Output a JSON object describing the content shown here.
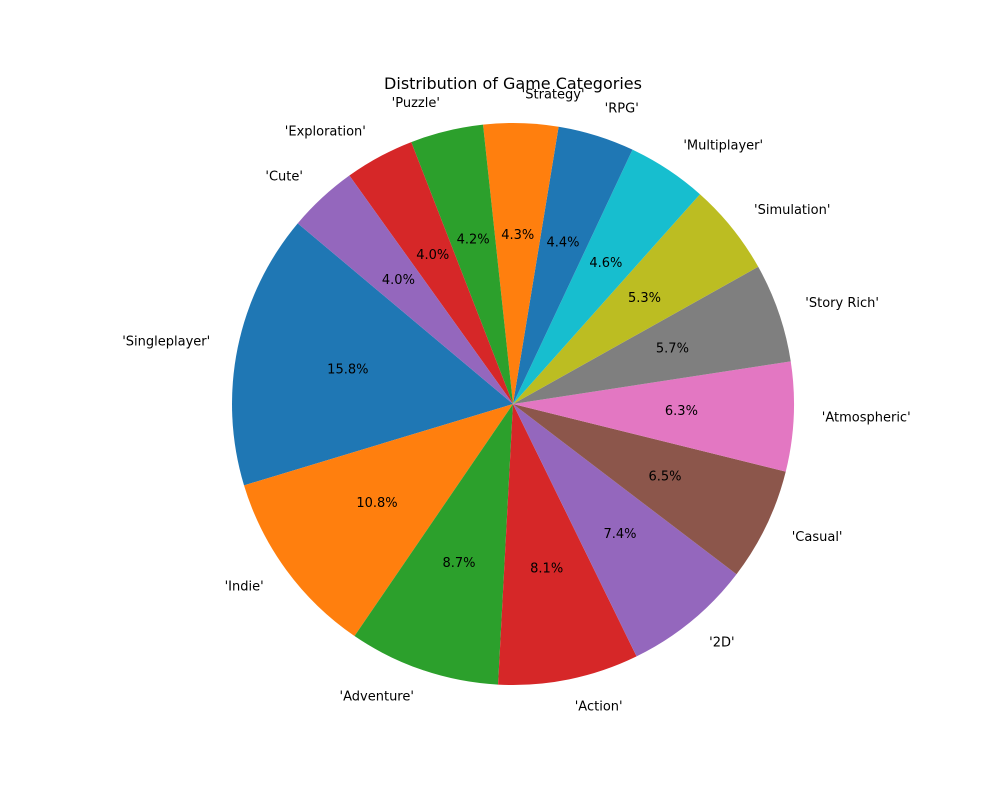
{
  "chart_data": {
    "type": "pie",
    "title": "Distribution of Game Categories",
    "start_angle_deg": 140,
    "direction": "counterclockwise",
    "slices": [
      {
        "label": "'Singleplayer'",
        "value": 15.8,
        "pct_text": "15.8%",
        "color": "#1f77b4"
      },
      {
        "label": "'Indie'",
        "value": 10.8,
        "pct_text": "10.8%",
        "color": "#ff7f0e"
      },
      {
        "label": "'Adventure'",
        "value": 8.7,
        "pct_text": "8.7%",
        "color": "#2ca02c"
      },
      {
        "label": "'Action'",
        "value": 8.1,
        "pct_text": "8.1%",
        "color": "#d62728"
      },
      {
        "label": "'2D'",
        "value": 7.4,
        "pct_text": "7.4%",
        "color": "#9467bd"
      },
      {
        "label": "'Casual'",
        "value": 6.5,
        "pct_text": "6.5%",
        "color": "#8c564b"
      },
      {
        "label": "'Atmospheric'",
        "value": 6.3,
        "pct_text": "6.3%",
        "color": "#e377c2"
      },
      {
        "label": "'Story Rich'",
        "value": 5.7,
        "pct_text": "5.7%",
        "color": "#7f7f7f"
      },
      {
        "label": "'Simulation'",
        "value": 5.3,
        "pct_text": "5.3%",
        "color": "#bcbd22"
      },
      {
        "label": "'Multiplayer'",
        "value": 4.6,
        "pct_text": "4.6%",
        "color": "#17becf"
      },
      {
        "label": "'RPG'",
        "value": 4.4,
        "pct_text": "4.4%",
        "color": "#1f77b4"
      },
      {
        "label": "'Strategy'",
        "value": 4.3,
        "pct_text": "4.3%",
        "color": "#ff7f0e"
      },
      {
        "label": "'Puzzle'",
        "value": 4.2,
        "pct_text": "4.2%",
        "color": "#2ca02c"
      },
      {
        "label": "'Exploration'",
        "value": 4.0,
        "pct_text": "4.0%",
        "color": "#d62728"
      },
      {
        "label": "'Cute'",
        "value": 4.0,
        "pct_text": "4.0%",
        "color": "#9467bd"
      }
    ]
  }
}
